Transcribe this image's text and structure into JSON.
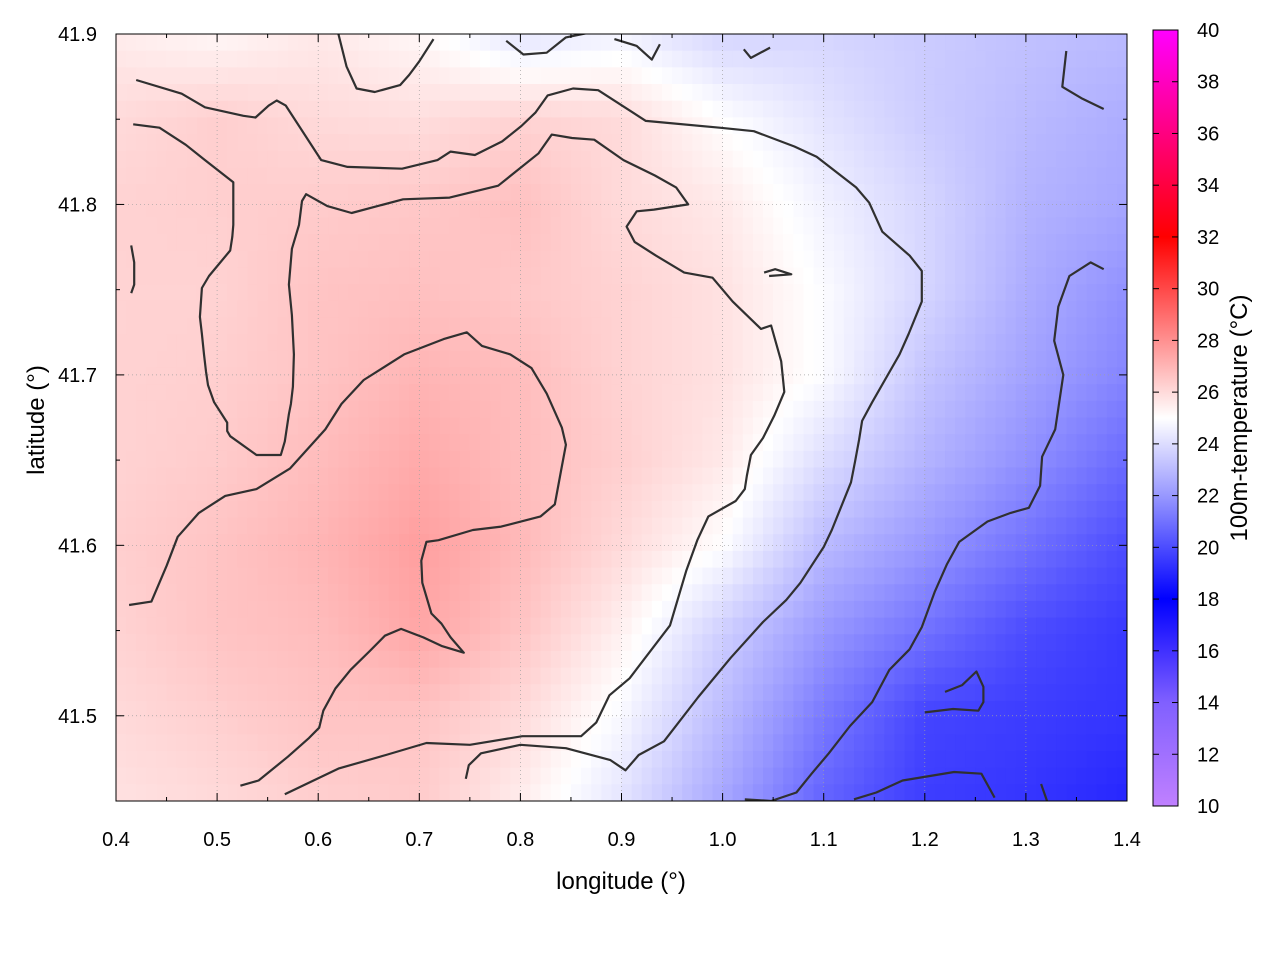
{
  "chart_data": {
    "type": "heatmap",
    "title": "",
    "xlabel": "longitude (°)",
    "ylabel": "latitude (°)",
    "colorbar_label": "100m-temperature (°C)",
    "xlim": [
      0.4,
      1.4
    ],
    "ylim": [
      41.45,
      41.9
    ],
    "x_ticks": [
      "0.4",
      "0.5",
      "0.6",
      "0.7",
      "0.8",
      "0.9",
      "1.0",
      "1.1",
      "1.2",
      "1.3",
      "1.4"
    ],
    "x_tick_values": [
      0.4,
      0.5,
      0.6,
      0.7,
      0.8,
      0.9,
      1.0,
      1.1,
      1.2,
      1.3,
      1.4
    ],
    "y_ticks": [
      "41.5",
      "41.6",
      "41.7",
      "41.8",
      "41.9"
    ],
    "y_tick_values": [
      41.5,
      41.6,
      41.7,
      41.8,
      41.9
    ],
    "colorbar_range": [
      10,
      40
    ],
    "colorbar_ticks": [
      "10",
      "12",
      "14",
      "16",
      "18",
      "20",
      "22",
      "24",
      "26",
      "28",
      "30",
      "32",
      "34",
      "36",
      "38",
      "40"
    ],
    "colorbar_tick_values": [
      10,
      12,
      14,
      16,
      18,
      20,
      22,
      24,
      26,
      28,
      30,
      32,
      34,
      36,
      38,
      40
    ],
    "colormap": [
      [
        10,
        "#c080ff"
      ],
      [
        14,
        "#8060ff"
      ],
      [
        18,
        "#0000ff"
      ],
      [
        22,
        "#9898ff"
      ],
      [
        25,
        "#ffffff"
      ],
      [
        28,
        "#ff9090"
      ],
      [
        32,
        "#ff0000"
      ],
      [
        36,
        "#ff0080"
      ],
      [
        40,
        "#ff00ff"
      ]
    ],
    "grid": true,
    "temperature_field": {
      "lon": [
        0.4,
        0.5,
        0.6,
        0.7,
        0.8,
        0.9,
        1.0,
        1.1,
        1.2,
        1.3,
        1.4
      ],
      "lat": [
        41.9,
        41.85,
        41.8,
        41.75,
        41.7,
        41.65,
        41.6,
        41.55,
        41.5,
        41.45
      ],
      "values": [
        [
          25.5,
          25.2,
          25.6,
          25.2,
          24.2,
          24.6,
          23.8,
          23.8,
          23.5,
          23.2,
          23.0
        ],
        [
          26.0,
          26.3,
          26.0,
          25.9,
          26.2,
          26.0,
          25.0,
          24.2,
          23.5,
          23.0,
          22.6
        ],
        [
          26.2,
          26.3,
          26.4,
          26.5,
          26.7,
          26.0,
          25.6,
          24.6,
          23.8,
          22.8,
          22.4
        ],
        [
          26.2,
          26.2,
          26.6,
          26.7,
          26.5,
          26.2,
          25.8,
          24.9,
          23.8,
          22.6,
          21.8
        ],
        [
          26.2,
          26.3,
          26.6,
          27.0,
          26.8,
          26.2,
          25.8,
          24.9,
          23.3,
          22.3,
          21.5
        ],
        [
          26.2,
          26.4,
          26.8,
          27.3,
          26.8,
          26.3,
          25.6,
          24.0,
          22.8,
          21.8,
          20.8
        ],
        [
          26.3,
          26.6,
          27.0,
          27.6,
          26.9,
          26.0,
          25.0,
          23.0,
          22.0,
          21.0,
          20.0
        ],
        [
          26.2,
          26.6,
          26.8,
          27.4,
          26.6,
          25.4,
          23.6,
          22.0,
          21.0,
          20.0,
          19.5
        ],
        [
          26.0,
          26.3,
          26.6,
          26.6,
          26.0,
          24.8,
          23.0,
          21.2,
          19.8,
          19.6,
          19.4
        ],
        [
          25.8,
          26.0,
          26.3,
          26.4,
          25.5,
          24.2,
          22.4,
          20.6,
          19.6,
          19.4,
          19.0
        ]
      ]
    },
    "isotherms": [
      [
        [
          0.42,
          41.873
        ],
        [
          0.465,
          41.865
        ],
        [
          0.488,
          41.857
        ],
        [
          0.526,
          41.852
        ],
        [
          0.538,
          41.851
        ],
        [
          0.551,
          41.858
        ],
        [
          0.559,
          41.861
        ],
        [
          0.568,
          41.858
        ],
        [
          0.603,
          41.826
        ],
        [
          0.629,
          41.822
        ],
        [
          0.683,
          41.821
        ],
        [
          0.718,
          41.826
        ],
        [
          0.731,
          41.831
        ],
        [
          0.755,
          41.829
        ],
        [
          0.782,
          41.837
        ],
        [
          0.801,
          41.846
        ],
        [
          0.815,
          41.854
        ],
        [
          0.827,
          41.864
        ],
        [
          0.852,
          41.868
        ],
        [
          0.877,
          41.867
        ],
        [
          0.924,
          41.849
        ],
        [
          0.997,
          41.845
        ],
        [
          1.031,
          41.843
        ],
        [
          1.071,
          41.834
        ],
        [
          1.093,
          41.828
        ],
        [
          1.132,
          41.81
        ],
        [
          1.145,
          41.801
        ],
        [
          1.158,
          41.784
        ],
        [
          1.185,
          41.77
        ],
        [
          1.197,
          41.761
        ],
        [
          1.197,
          41.743
        ],
        [
          1.184,
          41.724
        ],
        [
          1.175,
          41.712
        ],
        [
          1.148,
          41.684
        ],
        [
          1.138,
          41.673
        ],
        [
          1.135,
          41.662
        ],
        [
          1.131,
          41.649
        ],
        [
          1.127,
          41.637
        ],
        [
          1.108,
          41.609
        ],
        [
          1.1,
          41.599
        ],
        [
          1.077,
          41.578
        ],
        [
          1.063,
          41.568
        ],
        [
          1.04,
          41.555
        ],
        [
          1.008,
          41.534
        ],
        [
          0.976,
          41.511
        ],
        [
          0.942,
          41.485
        ],
        [
          0.917,
          41.477
        ],
        [
          0.904,
          41.468
        ],
        [
          0.889,
          41.474
        ],
        [
          0.845,
          41.481
        ],
        [
          0.8,
          41.483
        ],
        [
          0.761,
          41.478
        ],
        [
          0.749,
          41.471
        ],
        [
          0.746,
          41.463
        ]
      ],
      [
        [
          0.417,
          41.847
        ],
        [
          0.443,
          41.845
        ],
        [
          0.469,
          41.835
        ],
        [
          0.488,
          41.826
        ],
        [
          0.516,
          41.813
        ],
        [
          0.516,
          41.788
        ],
        [
          0.515,
          41.781
        ],
        [
          0.513,
          41.773
        ],
        [
          0.492,
          41.758
        ],
        [
          0.485,
          41.751
        ],
        [
          0.483,
          41.734
        ],
        [
          0.485,
          41.724
        ],
        [
          0.487,
          41.712
        ],
        [
          0.489,
          41.702
        ],
        [
          0.491,
          41.694
        ],
        [
          0.497,
          41.684
        ],
        [
          0.51,
          41.672
        ],
        [
          0.51,
          41.667
        ],
        [
          0.513,
          41.664
        ],
        [
          0.539,
          41.653
        ],
        [
          0.563,
          41.653
        ],
        [
          0.567,
          41.661
        ],
        [
          0.571,
          41.677
        ],
        [
          0.573,
          41.683
        ],
        [
          0.575,
          41.693
        ],
        [
          0.576,
          41.712
        ],
        [
          0.574,
          41.735
        ],
        [
          0.571,
          41.753
        ],
        [
          0.574,
          41.774
        ],
        [
          0.581,
          41.788
        ],
        [
          0.584,
          41.802
        ],
        [
          0.588,
          41.806
        ],
        [
          0.609,
          41.799
        ],
        [
          0.633,
          41.795
        ],
        [
          0.684,
          41.803
        ],
        [
          0.73,
          41.804
        ],
        [
          0.778,
          41.811
        ],
        [
          0.818,
          41.83
        ],
        [
          0.831,
          41.841
        ],
        [
          0.851,
          41.839
        ],
        [
          0.873,
          41.838
        ],
        [
          0.902,
          41.826
        ],
        [
          0.933,
          41.817
        ],
        [
          0.954,
          41.81
        ],
        [
          0.966,
          41.8
        ],
        [
          0.932,
          41.797
        ],
        [
          0.915,
          41.796
        ],
        [
          0.905,
          41.787
        ],
        [
          0.913,
          41.778
        ],
        [
          0.934,
          41.77
        ],
        [
          0.962,
          41.76
        ],
        [
          0.99,
          41.757
        ],
        [
          1.01,
          41.743
        ],
        [
          1.017,
          41.739
        ],
        [
          1.038,
          41.727
        ],
        [
          1.048,
          41.729
        ],
        [
          1.058,
          41.708
        ],
        [
          1.061,
          41.69
        ],
        [
          1.051,
          41.676
        ],
        [
          1.04,
          41.663
        ],
        [
          1.028,
          41.653
        ],
        [
          1.024,
          41.641
        ],
        [
          1.022,
          41.633
        ],
        [
          1.013,
          41.626
        ],
        [
          0.986,
          41.617
        ],
        [
          0.975,
          41.603
        ],
        [
          0.964,
          41.585
        ],
        [
          0.948,
          41.553
        ],
        [
          0.908,
          41.522
        ],
        [
          0.888,
          41.512
        ],
        [
          0.875,
          41.496
        ],
        [
          0.86,
          41.488
        ],
        [
          0.802,
          41.488
        ],
        [
          0.75,
          41.483
        ],
        [
          0.707,
          41.484
        ],
        [
          0.667,
          41.477
        ],
        [
          0.62,
          41.469
        ],
        [
          0.567,
          41.454
        ]
      ],
      [
        [
          0.413,
          41.565
        ],
        [
          0.435,
          41.567
        ],
        [
          0.45,
          41.588
        ],
        [
          0.461,
          41.605
        ],
        [
          0.482,
          41.619
        ],
        [
          0.508,
          41.629
        ],
        [
          0.539,
          41.633
        ],
        [
          0.572,
          41.645
        ],
        [
          0.607,
          41.668
        ],
        [
          0.623,
          41.683
        ],
        [
          0.645,
          41.697
        ],
        [
          0.685,
          41.712
        ],
        [
          0.724,
          41.721
        ],
        [
          0.747,
          41.725
        ],
        [
          0.762,
          41.717
        ],
        [
          0.79,
          41.712
        ],
        [
          0.811,
          41.704
        ],
        [
          0.826,
          41.689
        ],
        [
          0.841,
          41.669
        ],
        [
          0.845,
          41.659
        ],
        [
          0.84,
          41.643
        ],
        [
          0.834,
          41.624
        ],
        [
          0.82,
          41.617
        ],
        [
          0.781,
          41.611
        ],
        [
          0.753,
          41.609
        ],
        [
          0.719,
          41.603
        ],
        [
          0.707,
          41.602
        ],
        [
          0.702,
          41.591
        ],
        [
          0.703,
          41.578
        ],
        [
          0.712,
          41.56
        ],
        [
          0.722,
          41.554
        ],
        [
          0.731,
          41.546
        ],
        [
          0.744,
          41.537
        ],
        [
          0.722,
          41.541
        ],
        [
          0.704,
          41.546
        ],
        [
          0.682,
          41.551
        ],
        [
          0.666,
          41.547
        ],
        [
          0.651,
          41.538
        ],
        [
          0.632,
          41.527
        ],
        [
          0.617,
          41.516
        ],
        [
          0.605,
          41.503
        ],
        [
          0.601,
          41.493
        ],
        [
          0.591,
          41.487
        ],
        [
          0.57,
          41.476
        ],
        [
          0.541,
          41.462
        ],
        [
          0.523,
          41.459
        ]
      ],
      [
        [
          0.415,
          41.776
        ],
        [
          0.418,
          41.766
        ],
        [
          0.418,
          41.753
        ],
        [
          0.415,
          41.748
        ]
      ],
      [
        [
          1.041,
          41.76
        ],
        [
          1.052,
          41.762
        ],
        [
          1.068,
          41.759
        ],
        [
          1.046,
          41.758
        ]
      ],
      [
        [
          1.22,
          41.514
        ],
        [
          1.237,
          41.518
        ],
        [
          1.251,
          41.526
        ],
        [
          1.258,
          41.517
        ],
        [
          1.258,
          41.508
        ],
        [
          1.253,
          41.503
        ],
        [
          1.228,
          41.504
        ],
        [
          1.2,
          41.502
        ]
      ],
      [
        [
          1.13,
          41.451
        ],
        [
          1.152,
          41.455
        ],
        [
          1.178,
          41.462
        ],
        [
          1.229,
          41.467
        ],
        [
          1.256,
          41.466
        ],
        [
          1.269,
          41.452
        ]
      ],
      [
        [
          1.315,
          41.46
        ],
        [
          1.325,
          41.443
        ],
        [
          1.331,
          41.426
        ]
      ],
      [
        [
          1.377,
          41.762
        ],
        [
          1.364,
          41.766
        ],
        [
          1.343,
          41.758
        ],
        [
          1.332,
          41.74
        ],
        [
          1.328,
          41.72
        ],
        [
          1.337,
          41.7
        ],
        [
          1.329,
          41.668
        ],
        [
          1.316,
          41.652
        ],
        [
          1.314,
          41.635
        ],
        [
          1.303,
          41.622
        ],
        [
          1.285,
          41.619
        ],
        [
          1.262,
          41.614
        ],
        [
          1.234,
          41.602
        ],
        [
          1.222,
          41.589
        ],
        [
          1.21,
          41.573
        ],
        [
          1.197,
          41.552
        ],
        [
          1.185,
          41.539
        ],
        [
          1.165,
          41.527
        ],
        [
          1.148,
          41.508
        ],
        [
          1.126,
          41.494
        ],
        [
          1.105,
          41.478
        ],
        [
          1.088,
          41.466
        ],
        [
          1.073,
          41.455
        ],
        [
          1.048,
          41.45
        ],
        [
          1.022,
          41.451
        ]
      ],
      [
        [
          1.34,
          41.89
        ],
        [
          1.336,
          41.869
        ],
        [
          1.356,
          41.862
        ],
        [
          1.377,
          41.856
        ]
      ],
      [
        [
          0.62,
          41.9
        ],
        [
          0.628,
          41.881
        ],
        [
          0.638,
          41.868
        ],
        [
          0.656,
          41.866
        ],
        [
          0.681,
          41.87
        ],
        [
          0.69,
          41.876
        ],
        [
          0.7,
          41.884
        ],
        [
          0.714,
          41.897
        ]
      ],
      [
        [
          0.786,
          41.896
        ],
        [
          0.803,
          41.888
        ],
        [
          0.826,
          41.889
        ],
        [
          0.845,
          41.898
        ],
        [
          0.87,
          41.901
        ]
      ],
      [
        [
          0.893,
          41.897
        ],
        [
          0.915,
          41.893
        ],
        [
          0.93,
          41.885
        ],
        [
          0.938,
          41.894
        ]
      ],
      [
        [
          1.021,
          41.891
        ],
        [
          1.028,
          41.886
        ],
        [
          1.047,
          41.892
        ]
      ]
    ]
  }
}
